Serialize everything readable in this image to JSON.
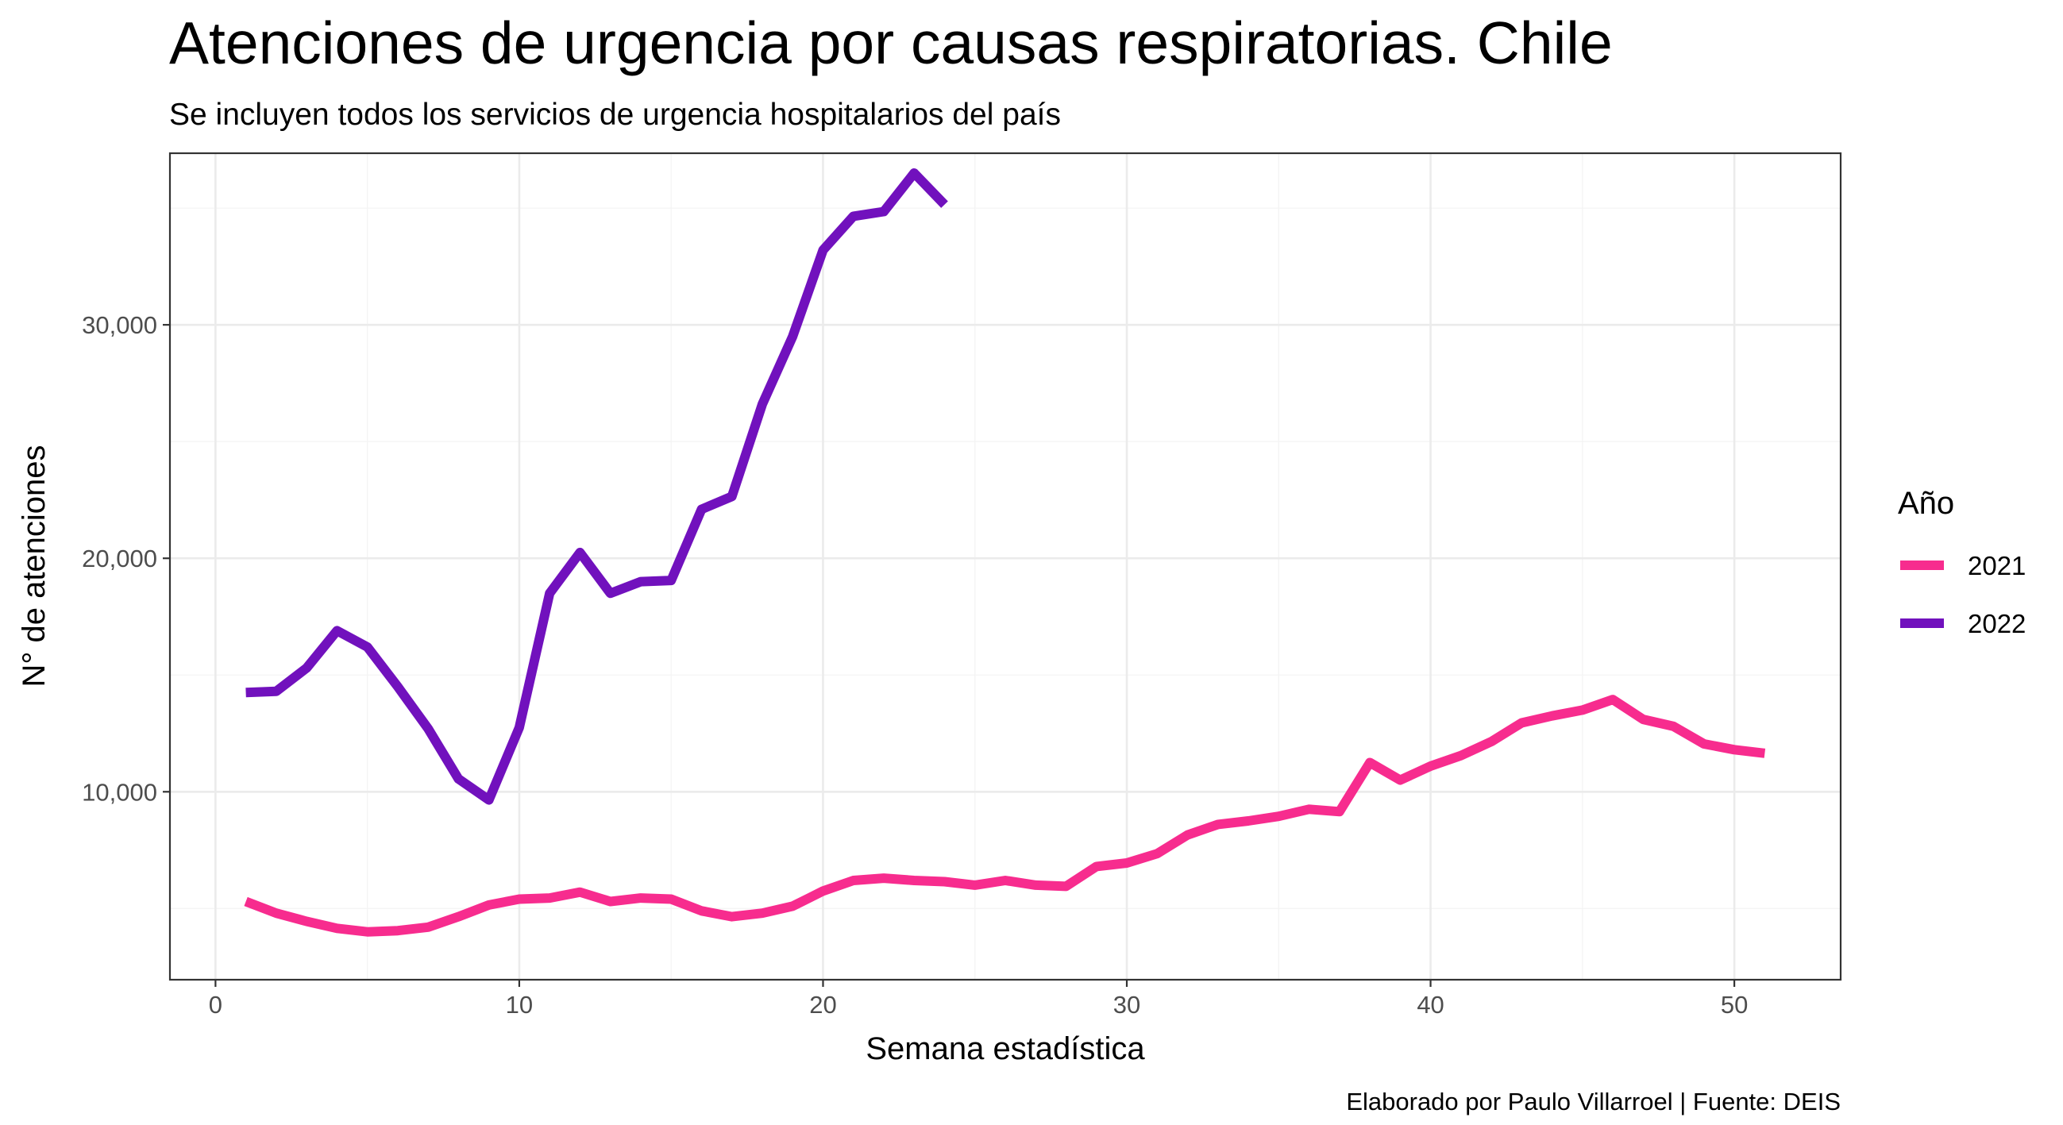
{
  "title": "Atenciones de urgencia por causas respiratorias. Chile",
  "subtitle": "Se incluyen todos los servicios de urgencia hospitalarios del país",
  "caption": "Elaborado por Paulo Villarroel | Fuente: DEIS",
  "legend_title": "Año",
  "colors": {
    "2021": "#F72C8E",
    "2022": "#7111BD",
    "grid_major": "#EBEBEB",
    "grid_minor": "#F4F4F4",
    "panel_border": "#333333"
  },
  "chart_data": {
    "type": "line",
    "title": "Atenciones de urgencia por causas respiratorias. Chile",
    "subtitle": "Se incluyen todos los servicios de urgencia hospitalarios del país",
    "xlabel": "Semana estadística",
    "ylabel": "N° de atenciones",
    "xlim": [
      -1.5,
      53.5
    ],
    "ylim": [
      1950,
      37350
    ],
    "x_ticks": [
      0,
      10,
      20,
      30,
      40,
      50
    ],
    "x_tick_labels": [
      "0",
      "10",
      "20",
      "30",
      "40",
      "50"
    ],
    "y_ticks": [
      10000,
      20000,
      30000
    ],
    "y_tick_labels": [
      "10,000",
      "20,000",
      "30,000"
    ],
    "grid": true,
    "legend_position": "right",
    "series": [
      {
        "name": "2021",
        "color": "#F72C8E",
        "x": [
          1,
          2,
          3,
          4,
          5,
          6,
          7,
          8,
          9,
          10,
          11,
          12,
          13,
          14,
          15,
          16,
          17,
          18,
          19,
          20,
          21,
          22,
          23,
          24,
          25,
          26,
          27,
          28,
          29,
          30,
          31,
          32,
          33,
          34,
          35,
          36,
          37,
          38,
          39,
          40,
          41,
          42,
          43,
          44,
          45,
          46,
          47,
          48,
          49,
          50,
          51
        ],
        "y": [
          5300,
          4800,
          4450,
          4150,
          4000,
          4050,
          4200,
          4650,
          5150,
          5400,
          5450,
          5700,
          5300,
          5450,
          5400,
          4900,
          4650,
          4800,
          5100,
          5750,
          6200,
          6300,
          6200,
          6150,
          6000,
          6200,
          6000,
          5950,
          6800,
          6950,
          7350,
          8150,
          8600,
          8750,
          8950,
          9250,
          9150,
          11250,
          10500,
          11100,
          11550,
          12150,
          12950,
          13250,
          13500,
          13950,
          13100,
          12800,
          12050,
          11800,
          11650
        ]
      },
      {
        "name": "2022",
        "color": "#7111BD",
        "x": [
          1,
          2,
          3,
          4,
          5,
          6,
          7,
          8,
          9,
          10,
          11,
          12,
          13,
          14,
          15,
          16,
          17,
          18,
          19,
          20,
          21,
          22,
          23,
          24
        ],
        "y": [
          14250,
          14300,
          15300,
          16900,
          16200,
          14500,
          12700,
          10550,
          9650,
          12750,
          18500,
          20250,
          18500,
          19000,
          19050,
          22100,
          22650,
          26600,
          29500,
          33200,
          34650,
          34850,
          36500,
          35150
        ]
      }
    ]
  }
}
